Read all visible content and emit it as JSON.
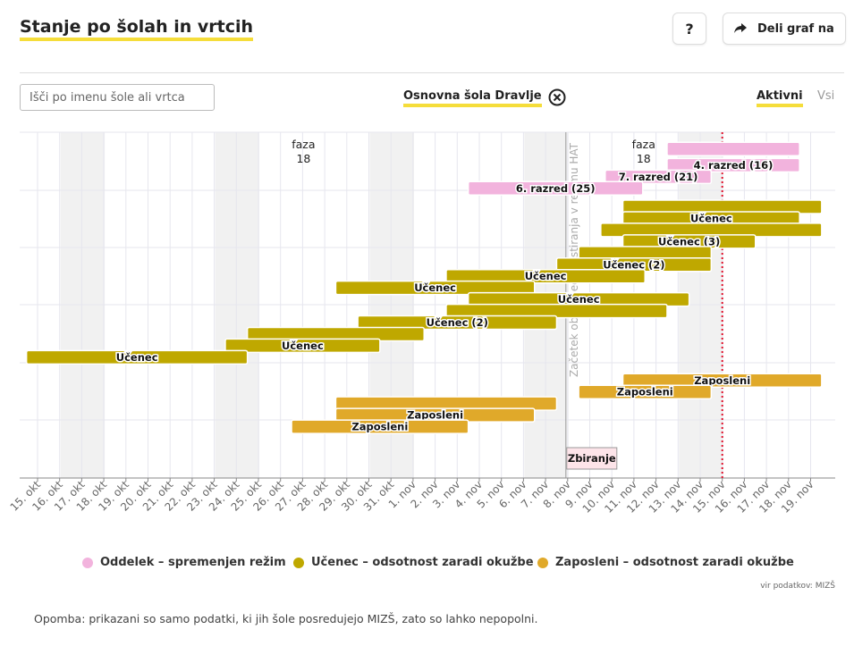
{
  "title": "Stanje po šolah in vrtcih",
  "help_label": "?",
  "share_label": "Deli graf na",
  "search": {
    "placeholder": "Išči po imenu šole ali vrtca"
  },
  "selected_school": "Osnovna šola Dravlje",
  "toggle": {
    "active": "Aktivni",
    "all": "Vsi"
  },
  "legend": [
    {
      "label": "Oddelek – spremenjen režim",
      "color": "#f2b3dd"
    },
    {
      "label": "Učenec – odsotnost zaradi okužbe",
      "color": "#bfa800"
    },
    {
      "label": "Zaposleni – odsotnost zaradi okužbe",
      "color": "#e0a92a"
    }
  ],
  "source": "vir podatkov: MIZŠ",
  "note": "Opomba: prikazani so samo podatki, ki jih šole posredujejo MIZŠ, zato so lahko nepopolni.",
  "chart_data": {
    "type": "gantt",
    "x_ticks": [
      "15. okt",
      "16. okt",
      "17. okt",
      "18. okt",
      "19. okt",
      "20. okt",
      "21. okt",
      "22. okt",
      "23. okt",
      "24. okt",
      "25. okt",
      "26. okt",
      "27. okt",
      "28. okt",
      "29. okt",
      "30. okt",
      "31. okt",
      "1. nov",
      "2. nov",
      "3. nov",
      "4. nov",
      "5. nov",
      "6. nov",
      "7. nov",
      "8. nov",
      "9. nov",
      "10. nov",
      "11. nov",
      "12. nov",
      "13. nov",
      "14. nov",
      "15. nov",
      "16. nov",
      "17. nov",
      "18. nov",
      "19. nov"
    ],
    "annotations": [
      {
        "text": "faza",
        "subtext": "18",
        "day": 12
      },
      {
        "text": "faza",
        "subtext": "18",
        "day": 27.4
      },
      {
        "text": "Začetek obveznega testiranja v režimu HAT",
        "day": 24,
        "kind": "vline"
      },
      {
        "text": "Zbiranje",
        "day": 24,
        "kind": "box"
      }
    ],
    "today_day": 31,
    "bars": [
      {
        "cat": "oddelek",
        "start": 28.5,
        "end": 34.5,
        "row": 0.3,
        "label": ""
      },
      {
        "cat": "oddelek",
        "start": 28.5,
        "end": 34.5,
        "row": 1.0,
        "label": "4. razred (16)"
      },
      {
        "cat": "oddelek",
        "start": 25.7,
        "end": 30.5,
        "row": 1.5,
        "label": "7. razred (21)"
      },
      {
        "cat": "oddelek",
        "start": 19.5,
        "end": 27.4,
        "row": 2.0,
        "label": "6. razred (25)"
      },
      {
        "cat": "ucenec",
        "start": 26.5,
        "end": 35.5,
        "row": 2.8,
        "label": ""
      },
      {
        "cat": "ucenec",
        "start": 26.5,
        "end": 34.5,
        "row": 3.3,
        "label": "Učenec"
      },
      {
        "cat": "ucenec",
        "start": 25.5,
        "end": 35.5,
        "row": 3.8,
        "label": ""
      },
      {
        "cat": "ucenec",
        "start": 26.5,
        "end": 32.5,
        "row": 4.3,
        "label": "Učenec (3)"
      },
      {
        "cat": "ucenec",
        "start": 24.5,
        "end": 30.5,
        "row": 4.8,
        "label": ""
      },
      {
        "cat": "ucenec",
        "start": 23.5,
        "end": 30.5,
        "row": 5.3,
        "label": "Učenec (2)"
      },
      {
        "cat": "ucenec",
        "start": 18.5,
        "end": 27.5,
        "row": 5.8,
        "label": "Učenec"
      },
      {
        "cat": "ucenec",
        "start": 13.5,
        "end": 22.5,
        "row": 6.3,
        "label": "Učenec"
      },
      {
        "cat": "ucenec",
        "start": 19.5,
        "end": 29.5,
        "row": 6.8,
        "label": "Učenec"
      },
      {
        "cat": "ucenec",
        "start": 18.5,
        "end": 28.5,
        "row": 7.3,
        "label": ""
      },
      {
        "cat": "ucenec",
        "start": 14.5,
        "end": 23.5,
        "row": 7.8,
        "label": "Učenec (2)"
      },
      {
        "cat": "ucenec",
        "start": 9.5,
        "end": 17.5,
        "row": 8.3,
        "label": ""
      },
      {
        "cat": "ucenec",
        "start": 8.5,
        "end": 15.5,
        "row": 8.8,
        "label": "Učenec"
      },
      {
        "cat": "ucenec",
        "start": -0.5,
        "end": 9.5,
        "row": 9.3,
        "label": "Učenec"
      },
      {
        "cat": "zaposleni",
        "start": 26.5,
        "end": 35.5,
        "row": 10.3,
        "label": "Zaposleni"
      },
      {
        "cat": "zaposleni",
        "start": 24.5,
        "end": 30.5,
        "row": 10.8,
        "label": "Zaposleni"
      },
      {
        "cat": "zaposleni",
        "start": 13.5,
        "end": 23.5,
        "row": 11.3,
        "label": ""
      },
      {
        "cat": "zaposleni",
        "start": 13.5,
        "end": 22.5,
        "row": 11.8,
        "label": "Zaposleni"
      },
      {
        "cat": "zaposleni",
        "start": 11.5,
        "end": 19.5,
        "row": 12.3,
        "label": "Zaposleni"
      }
    ]
  }
}
